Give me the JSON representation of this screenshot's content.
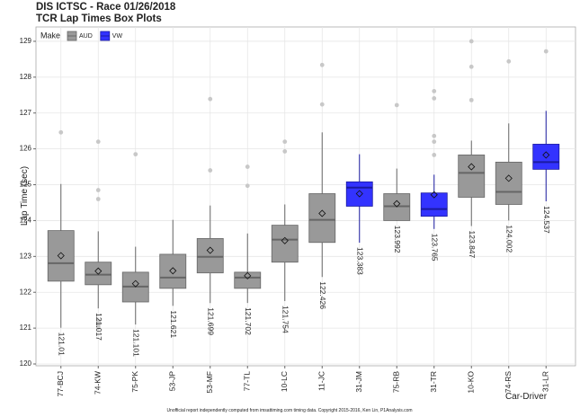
{
  "chart_data": {
    "type": "box",
    "title": "DIS ICTSC - Race 01/26/2018",
    "subtitle": "TCR Lap Times Box Plots",
    "y_label": "Lap Time (sec)",
    "x_label": "Car-Driver",
    "footer": "Unofficial report independently computed from imsattiming.com timing data. Copyright 2015-2016, Ken Lin, P1Analysis.com",
    "legend_title": "Make",
    "legend_position": "top-left",
    "grid": true,
    "ylim": [
      119.95,
      129.4
    ],
    "yticks": [
      120,
      121,
      122,
      123,
      124,
      125,
      126,
      127,
      128,
      129
    ],
    "categories": [
      "77-BCJ",
      "74-KW",
      "75-PK",
      "53-JP",
      "53-MF",
      "77-TL",
      "10-LC",
      "11-JC",
      "31-JM",
      "75-RB",
      "31-TR",
      "10-KO",
      "74-RS",
      "31-LR"
    ],
    "series": [
      {
        "name": "AUD",
        "color": "#999999",
        "edge": "#666666"
      },
      {
        "name": "VW",
        "color": "#3333ff",
        "edge": "#1a1aa0"
      }
    ],
    "make": [
      0,
      0,
      0,
      0,
      0,
      0,
      0,
      0,
      1,
      0,
      1,
      0,
      0,
      1
    ],
    "whisker_low": [
      121.01,
      121.55,
      121.101,
      121.621,
      121.699,
      121.702,
      121.754,
      122.426,
      123.383,
      123.992,
      123.765,
      123.847,
      124.002,
      124.537
    ],
    "q1": [
      122.31,
      122.21,
      121.73,
      122.11,
      122.54,
      122.11,
      122.84,
      123.39,
      124.4,
      124.0,
      124.12,
      124.65,
      124.45,
      125.43
    ],
    "median": [
      122.81,
      122.49,
      122.16,
      122.41,
      122.99,
      122.41,
      123.47,
      124.02,
      124.92,
      124.4,
      124.32,
      125.33,
      124.8,
      125.63
    ],
    "q3": [
      123.72,
      122.84,
      122.56,
      123.06,
      123.5,
      122.56,
      123.87,
      124.75,
      125.08,
      124.75,
      124.77,
      125.83,
      125.63,
      126.13
    ],
    "whisker_high": [
      125.02,
      123.7,
      123.27,
      124.02,
      124.42,
      123.64,
      124.45,
      126.46,
      125.85,
      125.45,
      125.28,
      126.23,
      126.71,
      127.06
    ],
    "mean": [
      123.02,
      122.59,
      122.24,
      122.6,
      123.17,
      122.46,
      123.44,
      124.2,
      124.75,
      124.47,
      124.72,
      125.5,
      125.18,
      125.83
    ],
    "min": [
      121.01,
      121.017,
      121.101,
      121.621,
      121.699,
      121.702,
      121.754,
      122.426,
      123.383,
      123.992,
      123.765,
      123.847,
      124.002,
      124.537
    ],
    "outliers": [
      [
        126.46
      ],
      [
        126.2,
        124.85,
        124.6,
        121.2,
        121.15,
        121.1,
        121.05,
        121.017
      ],
      [
        125.85
      ],
      [],
      [
        127.39,
        125.4
      ],
      [
        125.5,
        124.97
      ],
      [
        126.2,
        125.93
      ],
      [
        128.34,
        127.24
      ],
      [],
      [
        127.22
      ],
      [
        127.61,
        127.41,
        126.36,
        126.2,
        125.83
      ],
      [
        129.0,
        128.29,
        127.36
      ],
      [
        128.44
      ],
      [
        128.72
      ]
    ]
  }
}
